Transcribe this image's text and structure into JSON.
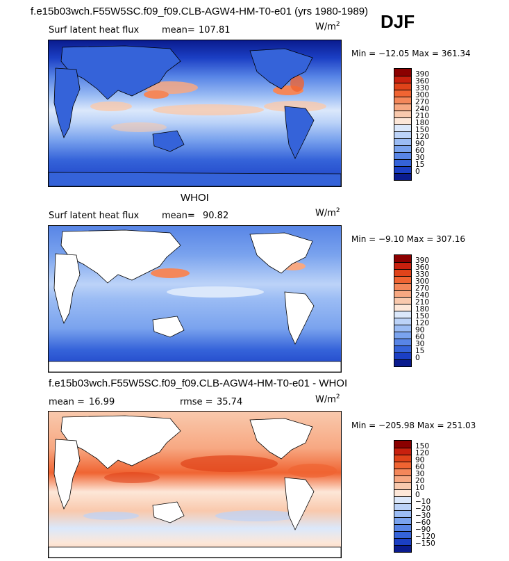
{
  "header": {
    "title": "f.e15b03wch.F55W5SC.f09_f09.CLB-AGW4-HM-T0-e01 (yrs 1980-1989)",
    "season": "DJF"
  },
  "panels": [
    {
      "id": "model",
      "variable": "Surf latent heat flux",
      "mean_label": "mean=",
      "mean_value": "107.81",
      "units_base": "W/m",
      "units_exp": "2",
      "minmax": "Min = −12.05 Max = 361.34",
      "colorbar": {
        "labels": [
          "390",
          "360",
          "330",
          "300",
          "270",
          "240",
          "210",
          "180",
          "150",
          "120",
          "90",
          "60",
          "30",
          "15",
          "0"
        ],
        "colors": [
          "#8b0000",
          "#c8200e",
          "#e0431a",
          "#f06432",
          "#f4875a",
          "#f7a882",
          "#f9c9ad",
          "#fde7d8",
          "#dbe8fb",
          "#bcd3f8",
          "#9bbcf4",
          "#7aa3ee",
          "#5885e6",
          "#3563d9",
          "#1b3fc4",
          "#0a1b8e"
        ]
      }
    },
    {
      "id": "obs",
      "subtitle": "WHOI",
      "variable": "Surf latent heat flux",
      "mean_label": "mean=",
      "mean_value": "90.82",
      "units_base": "W/m",
      "units_exp": "2",
      "minmax": "Min =  −9.10 Max = 307.16",
      "colorbar": {
        "labels": [
          "390",
          "360",
          "330",
          "300",
          "270",
          "240",
          "210",
          "180",
          "150",
          "120",
          "90",
          "60",
          "30",
          "15",
          "0"
        ],
        "colors": [
          "#8b0000",
          "#c8200e",
          "#e0431a",
          "#f06432",
          "#f4875a",
          "#f7a882",
          "#f9c9ad",
          "#fde7d8",
          "#dbe8fb",
          "#bcd3f8",
          "#9bbcf4",
          "#7aa3ee",
          "#5885e6",
          "#3563d9",
          "#1b3fc4",
          "#0a1b8e"
        ]
      }
    },
    {
      "id": "diff",
      "subtitle": "f.e15b03wch.F55W5SC.f09_f09.CLB-AGW4-HM-T0-e01 - WHOI",
      "mean_label": "mean =",
      "mean_value": "16.99",
      "rmse_label": "rmse =",
      "rmse_value": "35.74",
      "units_base": "W/m",
      "units_exp": "2",
      "minmax": "Min = −205.98 Max = 251.03",
      "colorbar": {
        "labels": [
          "150",
          "120",
          "90",
          "60",
          "30",
          "20",
          "10",
          "0",
          "−10",
          "−20",
          "−30",
          "−60",
          "−90",
          "−120",
          "−150"
        ],
        "colors": [
          "#8b0000",
          "#c8200e",
          "#e0431a",
          "#f06432",
          "#f4875a",
          "#f7a882",
          "#f9c9ad",
          "#fde7d8",
          "#dbe8fb",
          "#bcd3f8",
          "#9bbcf4",
          "#7aa3ee",
          "#5885e6",
          "#3563d9",
          "#1b3fc4",
          "#0a1b8e"
        ]
      }
    }
  ]
}
